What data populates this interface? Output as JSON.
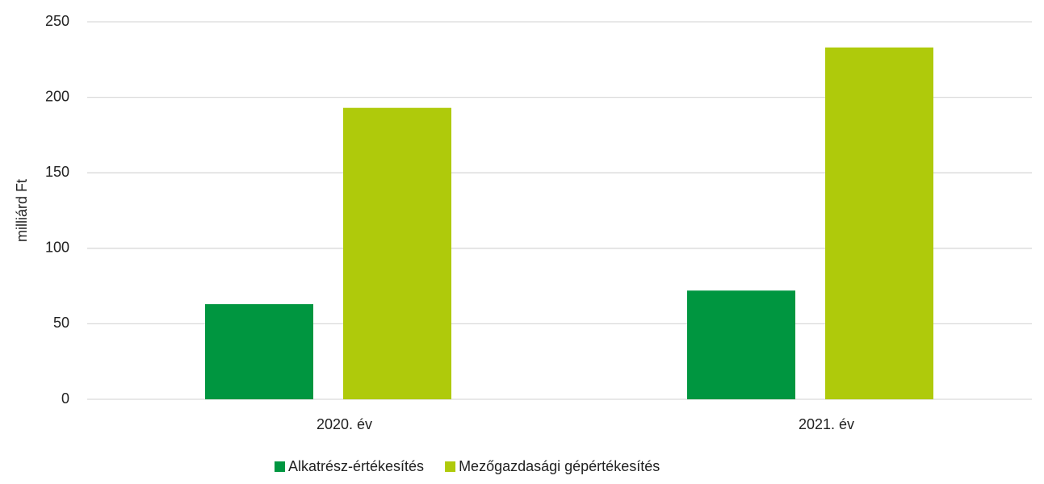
{
  "chart_data": {
    "type": "bar",
    "ylabel": "milliárd Ft",
    "categories": [
      "2020. év",
      "2021. év"
    ],
    "series": [
      {
        "name": "Alkatrész-értékesítés",
        "color": "#009640",
        "values": [
          63,
          72
        ]
      },
      {
        "name": "Mezőgazdasági gépértékesítés",
        "color": "#afca0b",
        "values": [
          193,
          233
        ]
      }
    ],
    "ylim": [
      0,
      250
    ],
    "yticks": [
      0,
      50,
      100,
      150,
      200,
      250
    ],
    "grid": true,
    "legend": "bottom"
  }
}
